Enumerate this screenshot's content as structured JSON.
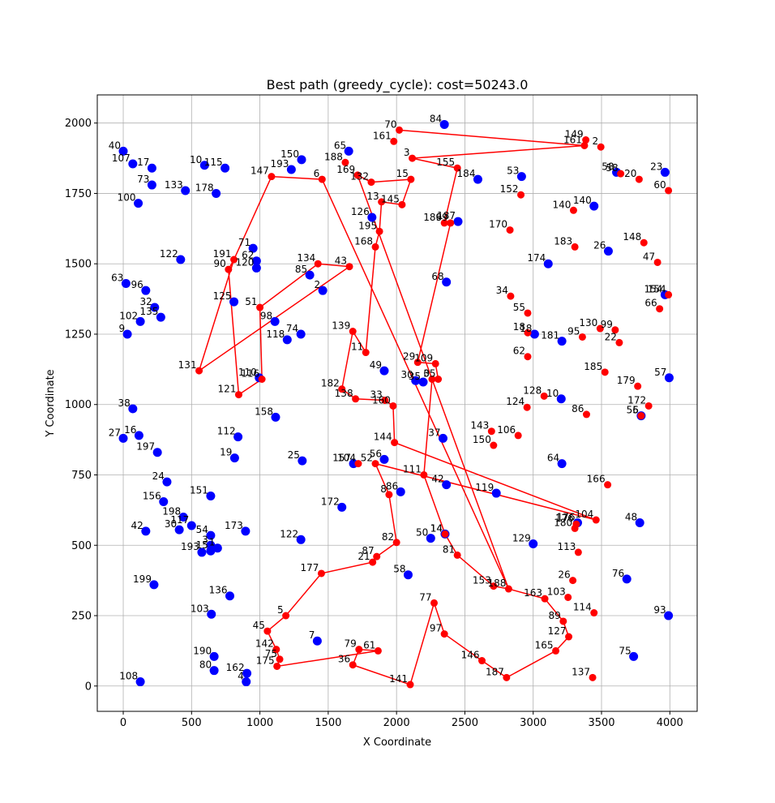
{
  "chart_data": {
    "type": "scatter",
    "title": "Best path (greedy_cycle): cost=50243.0",
    "xlabel": "X Coordinate",
    "ylabel": "Y Coordinate",
    "xlim": [
      -190,
      4200
    ],
    "ylim": [
      -90,
      2100
    ],
    "x_ticks": [
      0,
      500,
      1000,
      1500,
      2000,
      2500,
      3000,
      3500,
      4000
    ],
    "y_ticks": [
      0,
      250,
      500,
      750,
      1000,
      1250,
      1500,
      1750,
      2000
    ],
    "grid": true,
    "colors": {
      "unselected": "#0000ff",
      "path": "#ff0000",
      "text": "#000000",
      "grid": "#b0b0b0"
    },
    "unselected_points": [
      [
        40,
        0,
        1900
      ],
      [
        107,
        70,
        1855
      ],
      [
        17,
        210,
        1840
      ],
      [
        10,
        595,
        1850
      ],
      [
        115,
        745,
        1840
      ],
      [
        73,
        210,
        1780
      ],
      [
        133,
        455,
        1760
      ],
      [
        178,
        680,
        1750
      ],
      [
        100,
        110,
        1715
      ],
      [
        150,
        1305,
        1870
      ],
      [
        193,
        1230,
        1835
      ],
      [
        65,
        1650,
        1900
      ],
      [
        84,
        2350,
        1995
      ],
      [
        184,
        2595,
        1800
      ],
      [
        53,
        2915,
        1810
      ],
      [
        140,
        3445,
        1705
      ],
      [
        23,
        3965,
        1825
      ],
      [
        58,
        3610,
        1825
      ],
      [
        26,
        3550,
        1545
      ],
      [
        122,
        420,
        1515
      ],
      [
        71,
        950,
        1555
      ],
      [
        62,
        975,
        1510
      ],
      [
        120,
        975,
        1485
      ],
      [
        63,
        20,
        1430
      ],
      [
        96,
        165,
        1405
      ],
      [
        32,
        230,
        1345
      ],
      [
        135,
        275,
        1310
      ],
      [
        102,
        125,
        1295
      ],
      [
        9,
        30,
        1250
      ],
      [
        125,
        810,
        1365
      ],
      [
        98,
        1110,
        1295
      ],
      [
        118,
        1200,
        1230
      ],
      [
        74,
        1300,
        1250
      ],
      [
        85,
        1365,
        1460
      ],
      [
        2,
        1460,
        1405
      ],
      [
        126,
        1820,
        1665
      ],
      [
        187,
        2450,
        1650
      ],
      [
        68,
        2365,
        1435
      ],
      [
        174,
        3110,
        1500
      ],
      [
        154,
        3965,
        1390
      ],
      [
        18,
        3010,
        1250
      ],
      [
        181,
        3210,
        1225
      ],
      [
        110,
        995,
        1095
      ],
      [
        49,
        1910,
        1120
      ],
      [
        30,
        2140,
        1085
      ],
      [
        35,
        2195,
        1080
      ],
      [
        57,
        3995,
        1095
      ],
      [
        10,
        3205,
        1020
      ],
      [
        5,
        3790,
        960
      ],
      [
        38,
        70,
        985
      ],
      [
        158,
        1115,
        955
      ],
      [
        112,
        840,
        885
      ],
      [
        37,
        2340,
        880
      ],
      [
        27,
        0,
        880
      ],
      [
        16,
        115,
        890
      ],
      [
        197,
        250,
        830
      ],
      [
        19,
        815,
        810
      ],
      [
        25,
        1310,
        800
      ],
      [
        157,
        1685,
        790
      ],
      [
        56,
        1910,
        805
      ],
      [
        64,
        3210,
        790
      ],
      [
        24,
        320,
        725
      ],
      [
        156,
        295,
        655
      ],
      [
        151,
        640,
        675
      ],
      [
        119,
        2730,
        685
      ],
      [
        42,
        2365,
        715
      ],
      [
        198,
        440,
        600
      ],
      [
        172,
        1600,
        635
      ],
      [
        86,
        2030,
        690
      ],
      [
        176,
        3325,
        580
      ],
      [
        48,
        3780,
        580
      ],
      [
        42,
        165,
        550
      ],
      [
        30,
        410,
        555
      ],
      [
        117,
        500,
        570
      ],
      [
        54,
        640,
        535
      ],
      [
        173,
        895,
        550
      ],
      [
        3,
        640,
        500
      ],
      [
        15,
        640,
        480
      ],
      [
        1,
        690,
        490
      ],
      [
        193,
        575,
        475
      ],
      [
        50,
        2250,
        525
      ],
      [
        122,
        1300,
        520
      ],
      [
        129,
        3000,
        505
      ],
      [
        14,
        2355,
        540
      ],
      [
        58,
        2085,
        395
      ],
      [
        76,
        3685,
        380
      ],
      [
        199,
        225,
        360
      ],
      [
        136,
        780,
        320
      ],
      [
        103,
        645,
        255
      ],
      [
        93,
        3990,
        250
      ],
      [
        7,
        1420,
        160
      ],
      [
        75,
        3735,
        105
      ],
      [
        190,
        665,
        105
      ],
      [
        80,
        665,
        55
      ],
      [
        162,
        905,
        45
      ],
      [
        4,
        900,
        15
      ],
      [
        108,
        125,
        15
      ]
    ],
    "path_points": [
      [
        70,
        2020,
        1975
      ],
      [
        161,
        1980,
        1935
      ],
      [
        3,
        2115,
        1875
      ],
      [
        155,
        2445,
        1840
      ],
      [
        15,
        2105,
        1800
      ],
      [
        145,
        2040,
        1710
      ],
      [
        13,
        1890,
        1720
      ],
      [
        132,
        1815,
        1790
      ],
      [
        169,
        1715,
        1815
      ],
      [
        188,
        1625,
        1860
      ],
      [
        6,
        1455,
        1800
      ],
      [
        147,
        1085,
        1810
      ],
      [
        195,
        1875,
        1615
      ],
      [
        168,
        1845,
        1560
      ],
      [
        134,
        1425,
        1500
      ],
      [
        43,
        1655,
        1490
      ],
      [
        191,
        810,
        1515
      ],
      [
        90,
        770,
        1480
      ],
      [
        51,
        1000,
        1345
      ],
      [
        139,
        1680,
        1260
      ],
      [
        11,
        1775,
        1185
      ],
      [
        131,
        555,
        1120
      ],
      [
        116,
        1015,
        1090
      ],
      [
        121,
        845,
        1035
      ],
      [
        182,
        1600,
        1055
      ],
      [
        138,
        1700,
        1020
      ],
      [
        33,
        1915,
        1015
      ],
      [
        160,
        1975,
        995
      ],
      [
        29,
        2155,
        1150
      ],
      [
        109,
        2285,
        1145
      ],
      [
        0,
        2260,
        1090
      ],
      [
        35,
        2305,
        1090
      ],
      [
        144,
        1985,
        865
      ],
      [
        52,
        1845,
        790
      ],
      [
        104,
        1720,
        790
      ],
      [
        111,
        2200,
        750
      ],
      [
        8,
        1945,
        680
      ],
      [
        82,
        2000,
        510
      ],
      [
        87,
        1855,
        460
      ],
      [
        21,
        1825,
        440
      ],
      [
        177,
        1450,
        400
      ],
      [
        14,
        2355,
        540
      ],
      [
        81,
        2445,
        465
      ],
      [
        5,
        1190,
        250
      ],
      [
        45,
        1055,
        195
      ],
      [
        142,
        1120,
        130
      ],
      [
        75,
        1145,
        95
      ],
      [
        175,
        1125,
        70
      ],
      [
        79,
        1725,
        130
      ],
      [
        61,
        1865,
        125
      ],
      [
        36,
        1680,
        75
      ],
      [
        141,
        2100,
        5
      ],
      [
        77,
        2275,
        295
      ],
      [
        97,
        2350,
        185
      ],
      [
        146,
        2625,
        90
      ],
      [
        187,
        2805,
        30
      ],
      [
        153,
        2710,
        355
      ],
      [
        188,
        2820,
        345
      ],
      [
        163,
        3085,
        310
      ],
      [
        103,
        3255,
        315
      ],
      [
        89,
        3220,
        230
      ],
      [
        127,
        3260,
        175
      ],
      [
        165,
        3165,
        125
      ],
      [
        26,
        3290,
        375
      ],
      [
        114,
        3445,
        260
      ],
      [
        137,
        3435,
        30
      ],
      [
        113,
        3330,
        475
      ],
      [
        176,
        3315,
        575
      ],
      [
        180,
        3305,
        560
      ],
      [
        104,
        3460,
        590
      ],
      [
        166,
        3545,
        715
      ],
      [
        56,
        3790,
        960
      ],
      [
        172,
        3845,
        995
      ],
      [
        179,
        3765,
        1065
      ],
      [
        185,
        3525,
        1115
      ],
      [
        95,
        3360,
        1240
      ],
      [
        22,
        3630,
        1220
      ],
      [
        99,
        3600,
        1265
      ],
      [
        130,
        3490,
        1270
      ],
      [
        86,
        3390,
        965
      ],
      [
        106,
        2890,
        890
      ],
      [
        150,
        2710,
        855
      ],
      [
        143,
        2695,
        905
      ],
      [
        124,
        2955,
        990
      ],
      [
        128,
        3080,
        1030
      ],
      [
        62,
        2960,
        1170
      ],
      [
        18,
        2960,
        1255
      ],
      [
        55,
        2960,
        1325
      ],
      [
        34,
        2835,
        1385
      ],
      [
        170,
        2830,
        1620
      ],
      [
        152,
        2910,
        1745
      ],
      [
        183,
        3305,
        1560
      ],
      [
        140,
        3295,
        1690
      ],
      [
        149,
        3385,
        1940
      ],
      [
        161,
        3375,
        1920
      ],
      [
        2,
        3495,
        1915
      ],
      [
        58,
        3640,
        1820
      ],
      [
        20,
        3775,
        1800
      ],
      [
        60,
        3990,
        1760
      ],
      [
        148,
        3810,
        1575
      ],
      [
        47,
        3910,
        1505
      ],
      [
        154,
        3990,
        1390
      ],
      [
        66,
        3925,
        1340
      ],
      [
        189,
        2350,
        1645
      ],
      [
        69,
        2395,
        1645
      ]
    ],
    "path_order": [
      70,
      161,
      3,
      155,
      189,
      69,
      29,
      109,
      35,
      0,
      111,
      14,
      81,
      153,
      188,
      163,
      89,
      127,
      165,
      187,
      146,
      97,
      77,
      141,
      36,
      79,
      61,
      175,
      75,
      142,
      45,
      5,
      177,
      21,
      87,
      82,
      8,
      52,
      104,
      144,
      160,
      33,
      138,
      182,
      139,
      11,
      168,
      195,
      13,
      145,
      15,
      132,
      169,
      188,
      6,
      147,
      191,
      90,
      121,
      116,
      51,
      134,
      43,
      85,
      131,
      191
    ]
  }
}
